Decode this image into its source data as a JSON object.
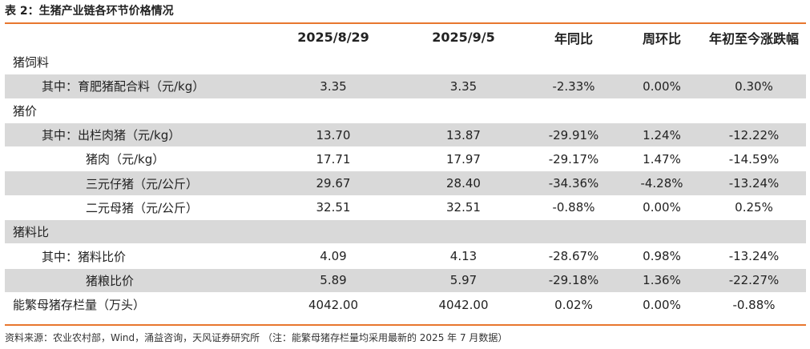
{
  "caption": "表 2：生猪产业链各环节价格情况",
  "headers": [
    "",
    "2025/8/29",
    "2025/9/5",
    "年同比",
    "周环比",
    "年初至今涨跌幅"
  ],
  "rows": [
    {
      "label": "猪饲料",
      "indent": 0,
      "shaded": false,
      "values": [
        "",
        "",
        "",
        "",
        ""
      ]
    },
    {
      "label": "其中：育肥猪配合料（元/kg）",
      "indent": 1,
      "shaded": true,
      "values": [
        "3.35",
        "3.35",
        "-2.33%",
        "0.00%",
        "0.30%"
      ]
    },
    {
      "label": "猪价",
      "indent": 0,
      "shaded": false,
      "values": [
        "",
        "",
        "",
        "",
        ""
      ]
    },
    {
      "label": "其中：出栏肉猪（元/kg）",
      "indent": 1,
      "shaded": true,
      "values": [
        "13.70",
        "13.87",
        "-29.91%",
        "1.24%",
        "-12.22%"
      ]
    },
    {
      "label": "猪肉（元/kg）",
      "indent": 2,
      "shaded": false,
      "values": [
        "17.71",
        "17.97",
        "-29.17%",
        "1.47%",
        "-14.59%"
      ]
    },
    {
      "label": "三元仔猪（元/公斤）",
      "indent": 2,
      "shaded": true,
      "values": [
        "29.67",
        "28.40",
        "-34.36%",
        "-4.28%",
        "-13.24%"
      ]
    },
    {
      "label": "二元母猪（元/公斤）",
      "indent": 2,
      "shaded": false,
      "values": [
        "32.51",
        "32.51",
        "-0.88%",
        "0.00%",
        "0.25%"
      ]
    },
    {
      "label": "猪料比",
      "indent": 0,
      "shaded": true,
      "values": [
        "",
        "",
        "",
        "",
        ""
      ]
    },
    {
      "label": "其中：猪料比价",
      "indent": 1,
      "shaded": false,
      "values": [
        "4.09",
        "4.13",
        "-28.67%",
        "0.98%",
        "-13.24%"
      ]
    },
    {
      "label": "猪粮比价",
      "indent": 2,
      "shaded": true,
      "values": [
        "5.89",
        "5.97",
        "-29.18%",
        "1.36%",
        "-22.27%"
      ]
    },
    {
      "label": "能繁母猪存栏量（万头）",
      "indent": 0,
      "shaded": false,
      "values": [
        "4042.00",
        "4042.00",
        "0.02%",
        "0.00%",
        "-0.88%"
      ]
    }
  ],
  "source": "资料来源：农业农村部，Wind，涌益咨询，天风证券研究所 （注：能繁母猪存栏量均采用最新的 2025 年 7 月数据）",
  "colors": {
    "accent_rule": "#e8772e",
    "row_shade": "#d9d9d9"
  }
}
